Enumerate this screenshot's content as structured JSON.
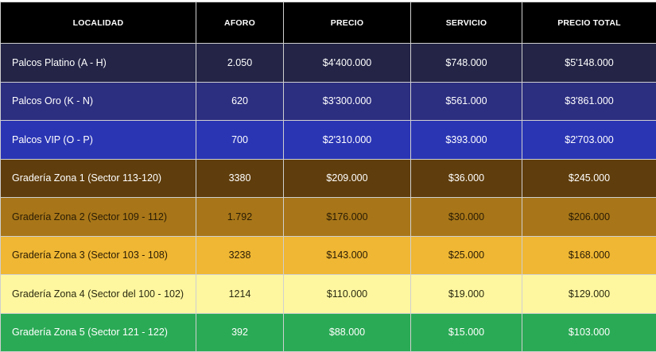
{
  "table": {
    "headers": [
      "LOCALIDAD",
      "AFORO",
      "PRECIO",
      "SERVICIO",
      "PRECIO TOTAL"
    ],
    "rows": [
      {
        "localidad": "Palcos Platino (A - H)",
        "aforo": "2.050",
        "precio": "$4'400.000",
        "servicio": "$748.000",
        "precio_total": "$5'148.000",
        "bg": "#232446",
        "fg": "#ffffff"
      },
      {
        "localidad": "Palcos Oro (K - N)",
        "aforo": "620",
        "precio": "$3'300.000",
        "servicio": "$561.000",
        "precio_total": "$3'861.000",
        "bg": "#2c2e80",
        "fg": "#ffffff"
      },
      {
        "localidad": "Palcos VIP (O - P)",
        "aforo": "700",
        "precio": "$2'310.000",
        "servicio": "$393.000",
        "precio_total": "$2'703.000",
        "bg": "#2a35b4",
        "fg": "#ffffff"
      },
      {
        "localidad": "Gradería Zona 1 (Sector 113-120)",
        "aforo": "3380",
        "precio": "$209.000",
        "servicio": "$36.000",
        "precio_total": "$245.000",
        "bg": "#5f3d0c",
        "fg": "#ffffff"
      },
      {
        "localidad": "Gradería Zona 2 (Sector 109 - 112)",
        "aforo": "1.792",
        "precio": "$176.000",
        "servicio": "$30.000",
        "precio_total": "$206.000",
        "bg": "#a87618",
        "fg": "#2a1c05"
      },
      {
        "localidad": "Gradería Zona 3 (Sector 103 - 108)",
        "aforo": "3238",
        "precio": "$143.000",
        "servicio": "$25.000",
        "precio_total": "$168.000",
        "bg": "#efb733",
        "fg": "#2a1c05"
      },
      {
        "localidad": "Gradería Zona 4 (Sector del 100 - 102)",
        "aforo": "1214",
        "precio": "$110.000",
        "servicio": "$19.000",
        "precio_total": "$129.000",
        "bg": "#fff7a0",
        "fg": "#2a2a10"
      },
      {
        "localidad": "Gradería Zona 5 (Sector 121 - 122)",
        "aforo": "392",
        "precio": "$88.000",
        "servicio": "$15.000",
        "precio_total": "$103.000",
        "bg": "#2aaa55",
        "fg": "#ffffff"
      }
    ]
  }
}
